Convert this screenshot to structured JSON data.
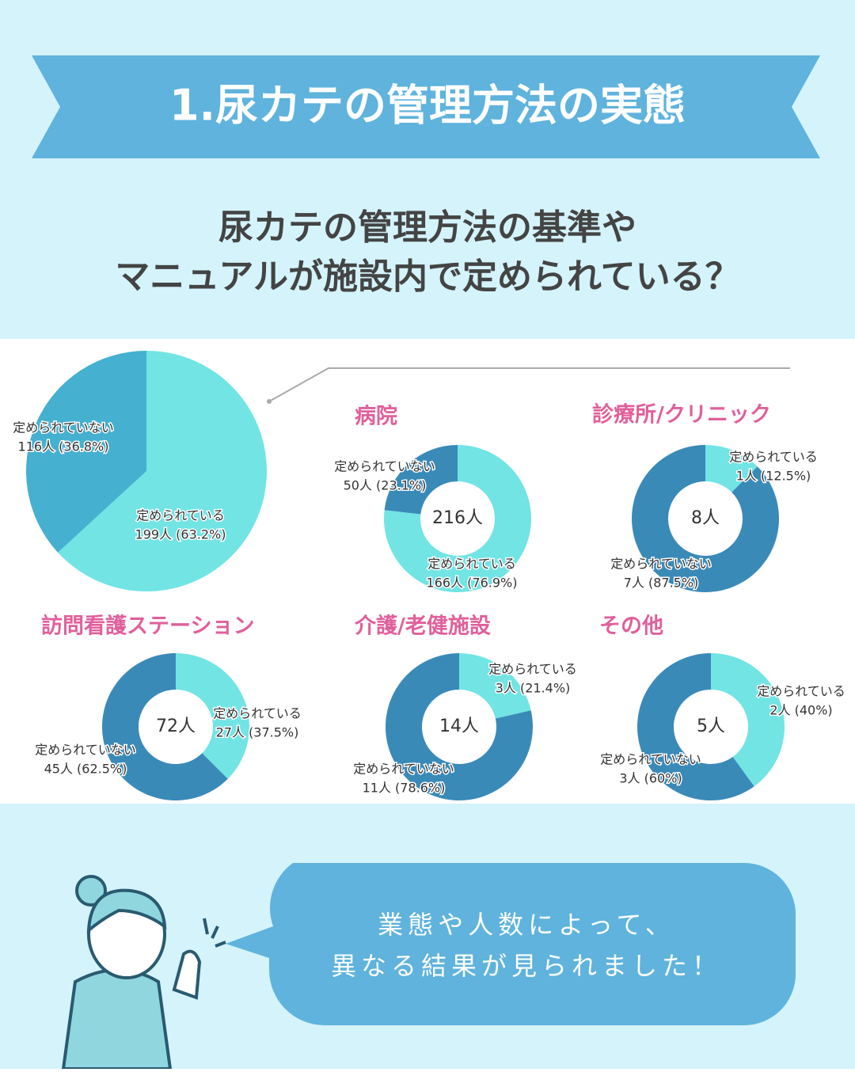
{
  "banner_title": "1.尿カテの管理方法の実態",
  "question": [
    "尿カテの管理方法の基準や",
    "マニュアルが施設内で定められている？"
  ],
  "speech": [
    "業態や人数によって、",
    "異なる結果が見られました！"
  ],
  "chart_data": [
    {
      "type": "pie",
      "categories": [
        "定められている",
        "定められていない"
      ],
      "values": [
        199,
        116
      ],
      "value_labels": [
        "199人 (63.2%)",
        "116人 (36.8%)"
      ],
      "colors": [
        "#72e4e4",
        "#45b0d0"
      ]
    },
    {
      "type": "donut",
      "title": "病院",
      "center_label": "216人",
      "categories": [
        "定められている",
        "定められていない"
      ],
      "values": [
        166,
        50
      ],
      "value_labels": [
        "166人 (76.9%)",
        "50人 (23.1%)"
      ],
      "colors": [
        "#72e4e4",
        "#3a8ab8"
      ]
    },
    {
      "type": "donut",
      "title": "診療所/クリニック",
      "center_label": "8人",
      "categories": [
        "定められている",
        "定められていない"
      ],
      "values": [
        1,
        7
      ],
      "value_labels": [
        "1人 (12.5%)",
        "7人 (87.5%)"
      ],
      "colors": [
        "#72e4e4",
        "#3a8ab8"
      ]
    },
    {
      "type": "donut",
      "title": "訪問看護ステーション",
      "center_label": "72人",
      "categories": [
        "定められている",
        "定められていない"
      ],
      "values": [
        27,
        45
      ],
      "value_labels": [
        "27人 (37.5%)",
        "45人 (62.5%)"
      ],
      "colors": [
        "#72e4e4",
        "#3a8ab8"
      ]
    },
    {
      "type": "donut",
      "title": "介護/老健施設",
      "center_label": "14人",
      "categories": [
        "定められている",
        "定められていない"
      ],
      "values": [
        3,
        11
      ],
      "value_labels": [
        "3人 (21.4%)",
        "11人 (78.6%)"
      ],
      "colors": [
        "#72e4e4",
        "#3a8ab8"
      ]
    },
    {
      "type": "donut",
      "title": "その他",
      "center_label": "5人",
      "categories": [
        "定められている",
        "定められていない"
      ],
      "values": [
        2,
        3
      ],
      "value_labels": [
        "2人 (40%)",
        "3人 (60%)"
      ],
      "colors": [
        "#72e4e4",
        "#3a8ab8"
      ]
    }
  ]
}
